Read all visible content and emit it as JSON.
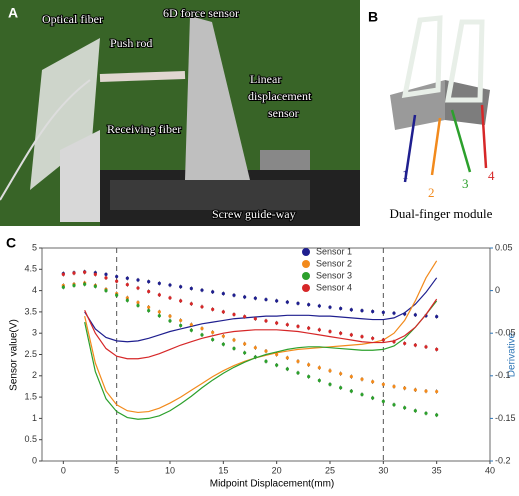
{
  "panel_a": {
    "letter": "A",
    "labels": {
      "optical_fiber": "Optical fiber",
      "force_sensor": "6D force sensor",
      "push_rod": "Push rod",
      "linear_sensor": [
        "Linear",
        "displacement",
        "sensor"
      ],
      "receiving_fiber": "Receiving fiber",
      "screw": "Screw guide-way"
    }
  },
  "panel_b": {
    "letter": "B",
    "numbers": [
      "1",
      "2",
      "3",
      "4"
    ],
    "caption": "Dual-finger module"
  },
  "chart_data": {
    "type": "scatter",
    "letter": "C",
    "xlabel": "Midpoint Displacement(mm)",
    "ylabel": "Sensor value(V)",
    "y2label": "Derivative",
    "xlim": [
      -2,
      40
    ],
    "xticks": [
      0,
      5,
      10,
      15,
      20,
      25,
      30,
      35,
      40
    ],
    "ylim": [
      0,
      5
    ],
    "yticks": [
      0,
      0.5,
      1,
      1.5,
      2,
      2.5,
      3,
      3.5,
      4,
      4.5,
      5
    ],
    "y2lim": [
      -0.2,
      0.05
    ],
    "y2ticks": [
      -0.2,
      -0.15,
      -0.1,
      -0.05,
      0,
      0.05
    ],
    "y2color": "#2e75b6",
    "vlines": [
      5,
      30
    ],
    "legend": "upper center",
    "x": [
      0,
      1,
      2,
      3,
      4,
      5,
      6,
      7,
      8,
      9,
      10,
      11,
      12,
      13,
      14,
      15,
      16,
      17,
      18,
      19,
      20,
      21,
      22,
      23,
      24,
      25,
      26,
      27,
      28,
      29,
      30,
      31,
      32,
      33,
      34,
      35
    ],
    "series": [
      {
        "name": "Sensor 1",
        "color": "#1f1f8f",
        "error": 0.05,
        "values": [
          4.4,
          4.42,
          4.44,
          4.42,
          4.38,
          4.33,
          4.29,
          4.25,
          4.21,
          4.17,
          4.13,
          4.09,
          4.05,
          4.01,
          3.97,
          3.93,
          3.89,
          3.85,
          3.82,
          3.79,
          3.76,
          3.73,
          3.7,
          3.67,
          3.64,
          3.61,
          3.58,
          3.55,
          3.53,
          3.51,
          3.49,
          3.47,
          3.45,
          3.43,
          3.41,
          3.39
        ],
        "derivative": [
          null,
          null,
          -0.025,
          -0.045,
          -0.055,
          -0.059,
          -0.06,
          -0.059,
          -0.056,
          -0.052,
          -0.048,
          -0.045,
          -0.042,
          -0.039,
          -0.037,
          -0.035,
          -0.033,
          -0.032,
          -0.031,
          -0.03,
          -0.03,
          -0.029,
          -0.029,
          -0.029,
          -0.03,
          -0.03,
          -0.031,
          -0.032,
          -0.033,
          -0.034,
          -0.034,
          -0.032,
          -0.026,
          -0.016,
          -0.002,
          0.015
        ]
      },
      {
        "name": "Sensor 2",
        "color": "#f28a1c",
        "error": 0.05,
        "values": [
          4.12,
          4.15,
          4.18,
          4.12,
          4.03,
          3.93,
          3.83,
          3.72,
          3.61,
          3.5,
          3.4,
          3.3,
          3.2,
          3.11,
          3.02,
          2.93,
          2.84,
          2.75,
          2.66,
          2.58,
          2.5,
          2.42,
          2.34,
          2.26,
          2.19,
          2.12,
          2.05,
          1.98,
          1.92,
          1.86,
          1.8,
          1.75,
          1.71,
          1.67,
          1.64,
          1.63
        ],
        "derivative": [
          null,
          null,
          -0.03,
          -0.085,
          -0.118,
          -0.134,
          -0.141,
          -0.143,
          -0.142,
          -0.138,
          -0.132,
          -0.125,
          -0.117,
          -0.109,
          -0.101,
          -0.094,
          -0.088,
          -0.083,
          -0.079,
          -0.076,
          -0.073,
          -0.071,
          -0.069,
          -0.068,
          -0.067,
          -0.066,
          -0.065,
          -0.064,
          -0.063,
          -0.061,
          -0.058,
          -0.05,
          -0.035,
          -0.012,
          0.015,
          0.035
        ]
      },
      {
        "name": "Sensor 3",
        "color": "#2ca02c",
        "error": 0.05,
        "values": [
          4.08,
          4.12,
          4.15,
          4.1,
          4.0,
          3.89,
          3.77,
          3.65,
          3.53,
          3.41,
          3.29,
          3.18,
          3.07,
          2.96,
          2.85,
          2.74,
          2.64,
          2.54,
          2.44,
          2.34,
          2.25,
          2.16,
          2.07,
          1.98,
          1.89,
          1.8,
          1.72,
          1.64,
          1.56,
          1.48,
          1.4,
          1.32,
          1.25,
          1.18,
          1.12,
          1.08
        ],
        "derivative": [
          null,
          null,
          -0.037,
          -0.095,
          -0.127,
          -0.142,
          -0.149,
          -0.151,
          -0.15,
          -0.147,
          -0.141,
          -0.133,
          -0.124,
          -0.114,
          -0.105,
          -0.097,
          -0.09,
          -0.084,
          -0.079,
          -0.075,
          -0.072,
          -0.069,
          -0.067,
          -0.066,
          -0.066,
          -0.067,
          -0.068,
          -0.069,
          -0.07,
          -0.07,
          -0.069,
          -0.065,
          -0.056,
          -0.043,
          -0.028,
          -0.012
        ]
      },
      {
        "name": "Sensor 4",
        "color": "#d62728",
        "error": 0.05,
        "values": [
          4.38,
          4.41,
          4.43,
          4.38,
          4.3,
          4.22,
          4.14,
          4.06,
          3.98,
          3.9,
          3.83,
          3.76,
          3.69,
          3.62,
          3.56,
          3.5,
          3.44,
          3.39,
          3.34,
          3.29,
          3.24,
          3.2,
          3.16,
          3.12,
          3.08,
          3.04,
          3.0,
          2.96,
          2.92,
          2.88,
          2.84,
          2.8,
          2.76,
          2.72,
          2.68,
          2.62
        ],
        "derivative": [
          null,
          null,
          -0.023,
          -0.05,
          -0.068,
          -0.077,
          -0.08,
          -0.08,
          -0.078,
          -0.074,
          -0.069,
          -0.064,
          -0.06,
          -0.056,
          -0.053,
          -0.05,
          -0.048,
          -0.047,
          -0.046,
          -0.046,
          -0.046,
          -0.047,
          -0.048,
          -0.05,
          -0.052,
          -0.054,
          -0.056,
          -0.058,
          -0.06,
          -0.061,
          -0.061,
          -0.059,
          -0.053,
          -0.043,
          -0.028,
          -0.01
        ]
      }
    ]
  }
}
